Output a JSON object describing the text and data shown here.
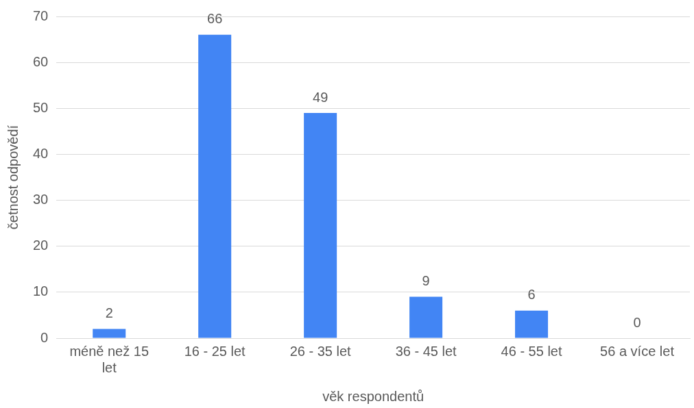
{
  "chart_data": {
    "type": "bar",
    "xlabel": "věk respondentů",
    "ylabel": "četnost odpovědí",
    "categories": [
      "méně než 15 let",
      "16 - 25 let",
      "26 - 35 let",
      "36 - 45 let",
      "46 - 55 let",
      "56 a více let"
    ],
    "values": [
      2,
      66,
      49,
      9,
      6,
      0
    ],
    "color": "#4285f4",
    "ylim": [
      0,
      70
    ],
    "yticks": [
      0,
      10,
      20,
      30,
      40,
      50,
      60,
      70
    ],
    "grid": "y",
    "data_labels": true
  }
}
